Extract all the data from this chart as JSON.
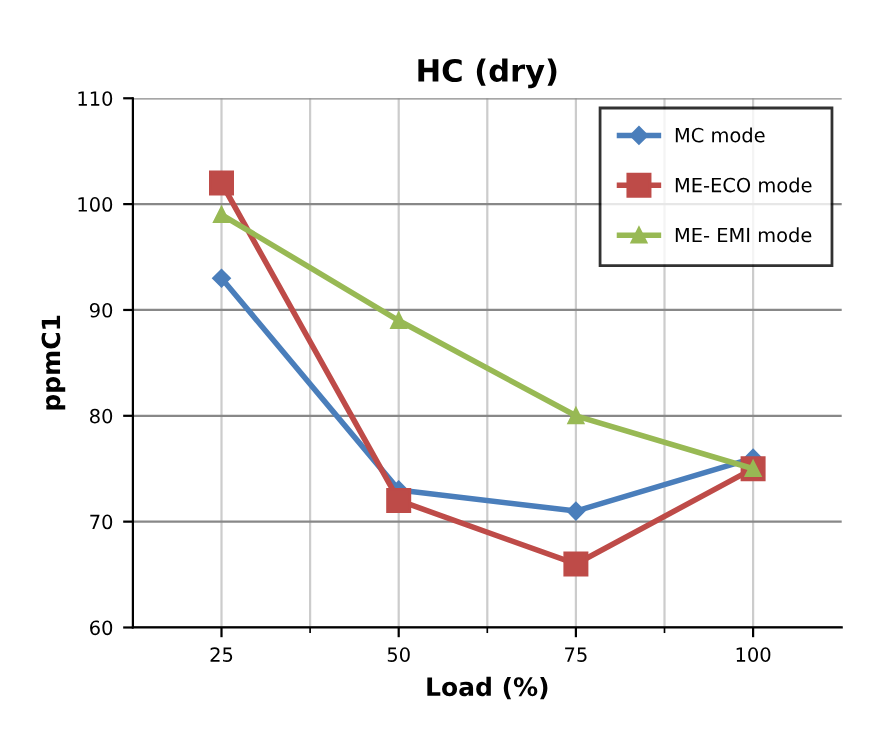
{
  "chart_data": {
    "type": "line",
    "title": "HC (dry)",
    "xlabel": "Load (%)",
    "ylabel": "ppmC1",
    "categories": [
      "25",
      "50",
      "75",
      "100"
    ],
    "series": [
      {
        "name": "MC mode",
        "color": "#4a7ebb",
        "marker": "diamond",
        "values": [
          93,
          73,
          71,
          76
        ]
      },
      {
        "name": "ME-ECO mode",
        "color": "#be4b48",
        "marker": "square",
        "values": [
          102,
          72,
          66,
          75
        ]
      },
      {
        "name": "ME- EMI mode",
        "color": "#98b954",
        "marker": "triangle",
        "values": [
          99,
          89,
          80,
          75
        ]
      }
    ],
    "ylim": [
      60,
      110
    ],
    "yticks": [
      60,
      70,
      80,
      90,
      100,
      110
    ],
    "grid": true,
    "legend": "top right",
    "line_style": "solid"
  }
}
